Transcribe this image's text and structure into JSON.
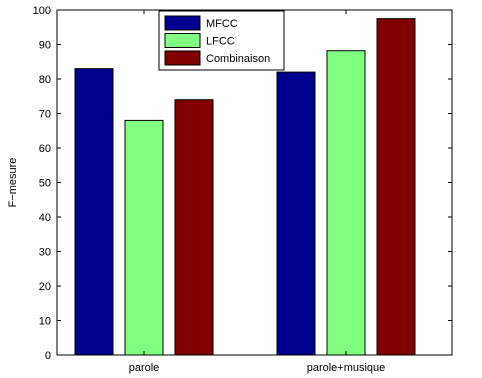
{
  "chart_data": {
    "type": "bar",
    "categories": [
      "parole",
      "parole+musique"
    ],
    "series": [
      {
        "name": "MFCC",
        "values": [
          83,
          82
        ],
        "color": "#00008f"
      },
      {
        "name": "LFCC",
        "values": [
          68,
          88.2
        ],
        "color": "#80ff80"
      },
      {
        "name": "Combinaison",
        "values": [
          74,
          97.5
        ],
        "color": "#800000"
      }
    ],
    "xlabel": "",
    "ylabel": "F−mesure",
    "ylim": [
      0,
      100
    ],
    "yticks": [
      0,
      10,
      20,
      30,
      40,
      50,
      60,
      70,
      80,
      90,
      100
    ],
    "ytick_labels": [
      "0",
      "10",
      "20",
      "30",
      "40",
      "50",
      "60",
      "70",
      "80",
      "90",
      "100"
    ],
    "grid": false,
    "legend_position": "top-center"
  }
}
